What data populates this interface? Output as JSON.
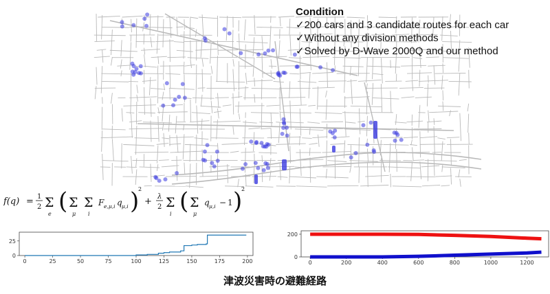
{
  "conditions": {
    "title": "Condition",
    "check_mark": "✓",
    "items": [
      "200 cars and 3 candidate routes for each car",
      "Without any division methods",
      "Solved by D-Wave 2000Q and our method"
    ]
  },
  "formula": {
    "lhs": "f(q)",
    "text": "f(q) = 1/2 Σ_e ( Σ_μ Σ_i F_{e,μ,i} q_{μ,i} )² + λ/2 Σ_i ( Σ_μ q_{μ,i} − 1 )²"
  },
  "caption": "津波災害時の避難経路",
  "colors": {
    "road": "#b9b9b9",
    "car_marker": "#3a3ae0",
    "line_blue": "#1f77b4",
    "series_red": "#ee1111",
    "series_blue": "#1010cc"
  },
  "chart_data": [
    {
      "type": "line",
      "xticks": [
        0,
        25,
        50,
        75,
        100,
        125,
        150,
        175,
        200
      ],
      "yticks": [
        0,
        25
      ],
      "xlim": [
        -5,
        205
      ],
      "ylim": [
        0,
        40
      ],
      "grid": false,
      "series": [
        {
          "x": [
            0,
            75,
            100,
            110,
            120,
            125,
            130,
            140,
            143,
            150,
            155,
            163,
            164,
            199
          ],
          "y": [
            0,
            0,
            1,
            2,
            4,
            5,
            6,
            8,
            17,
            18,
            19,
            20,
            35,
            35
          ]
        }
      ]
    },
    {
      "type": "line",
      "xticks": [
        0,
        200,
        400,
        600,
        800,
        1000,
        1200
      ],
      "yticks": [
        0,
        200
      ],
      "xlim": [
        -50,
        1320
      ],
      "ylim": [
        0,
        230
      ],
      "grid": false,
      "series": [
        {
          "x": [
            0,
            400,
            600,
            800,
            1000,
            1200,
            1280
          ],
          "y": [
            200,
            200,
            198,
            190,
            180,
            165,
            160
          ]
        },
        {
          "x": [
            0,
            400,
            600,
            800,
            1000,
            1200,
            1280
          ],
          "y": [
            0,
            0,
            5,
            15,
            25,
            35,
            42
          ]
        }
      ]
    }
  ]
}
